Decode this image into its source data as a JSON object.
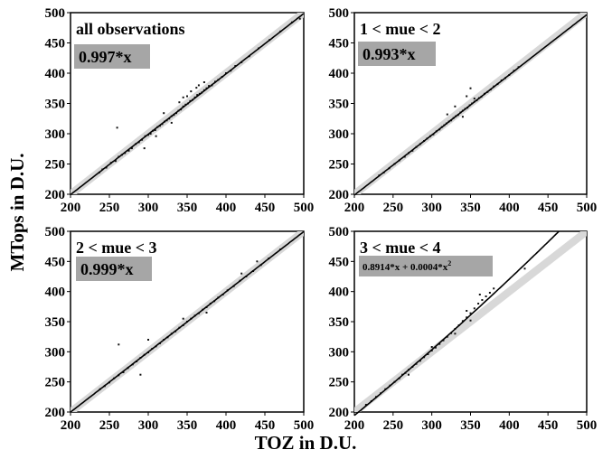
{
  "figure": {
    "xlabel": "TOZ in D.U.",
    "ylabel": "MTops in D.U."
  },
  "chart_data": [
    {
      "type": "scatter",
      "title": "all observations",
      "fit_label": "0.997*x",
      "fit": {
        "linear": 0.997,
        "quadratic": 0
      },
      "xlim": [
        200,
        500
      ],
      "ylim": [
        200,
        500
      ],
      "xticks": [
        200,
        250,
        300,
        350,
        400,
        450,
        500
      ],
      "yticks": [
        200,
        250,
        300,
        350,
        400,
        450,
        500
      ],
      "points": [
        [
          237,
          236
        ],
        [
          241,
          241
        ],
        [
          246,
          244
        ],
        [
          252,
          252
        ],
        [
          258,
          255
        ],
        [
          262,
          262
        ],
        [
          266,
          265
        ],
        [
          270,
          268
        ],
        [
          275,
          272
        ],
        [
          279,
          276
        ],
        [
          284,
          283
        ],
        [
          288,
          286
        ],
        [
          292,
          290
        ],
        [
          296,
          296
        ],
        [
          300,
          298
        ],
        [
          303,
          300
        ],
        [
          306,
          305
        ],
        [
          309,
          306
        ],
        [
          312,
          311
        ],
        [
          315,
          313
        ],
        [
          318,
          316
        ],
        [
          321,
          320
        ],
        [
          324,
          322
        ],
        [
          327,
          325
        ],
        [
          330,
          329
        ],
        [
          333,
          331
        ],
        [
          336,
          334
        ],
        [
          339,
          338
        ],
        [
          342,
          340
        ],
        [
          345,
          345
        ],
        [
          348,
          348
        ],
        [
          351,
          350
        ],
        [
          354,
          354
        ],
        [
          357,
          356
        ],
        [
          360,
          360
        ],
        [
          363,
          364
        ],
        [
          366,
          366
        ],
        [
          369,
          368
        ],
        [
          372,
          372
        ],
        [
          375,
          375
        ],
        [
          378,
          379
        ],
        [
          382,
          380
        ],
        [
          386,
          386
        ],
        [
          390,
          389
        ],
        [
          395,
          394
        ],
        [
          400,
          400
        ],
        [
          406,
          404
        ],
        [
          412,
          412
        ],
        [
          420,
          418
        ],
        [
          430,
          428
        ],
        [
          442,
          441
        ],
        [
          456,
          455
        ],
        [
          470,
          469
        ],
        [
          485,
          484
        ],
        [
          495,
          490
        ],
        [
          260,
          310
        ],
        [
          355,
          370
        ],
        [
          362,
          376
        ],
        [
          350,
          362
        ],
        [
          340,
          352
        ],
        [
          320,
          334
        ],
        [
          310,
          296
        ],
        [
          295,
          276
        ],
        [
          330,
          318
        ],
        [
          345,
          360
        ],
        [
          365,
          380
        ],
        [
          372,
          385
        ]
      ]
    },
    {
      "type": "scatter",
      "title": "1 < mue < 2",
      "fit_label": "0.993*x",
      "fit": {
        "linear": 0.993,
        "quadratic": 0
      },
      "xlim": [
        200,
        500
      ],
      "ylim": [
        200,
        500
      ],
      "xticks": [
        200,
        250,
        300,
        350,
        400,
        450,
        500
      ],
      "yticks": [
        200,
        250,
        300,
        350,
        400,
        450,
        500
      ],
      "points": [
        [
          232,
          231
        ],
        [
          238,
          236
        ],
        [
          245,
          243
        ],
        [
          252,
          250
        ],
        [
          258,
          256
        ],
        [
          265,
          262
        ],
        [
          270,
          268
        ],
        [
          275,
          272
        ],
        [
          280,
          278
        ],
        [
          285,
          283
        ],
        [
          290,
          288
        ],
        [
          294,
          292
        ],
        [
          298,
          296
        ],
        [
          302,
          299
        ],
        [
          306,
          304
        ],
        [
          310,
          307
        ],
        [
          313,
          311
        ],
        [
          316,
          314
        ],
        [
          319,
          317
        ],
        [
          322,
          320
        ],
        [
          325,
          322
        ],
        [
          328,
          326
        ],
        [
          331,
          329
        ],
        [
          334,
          331
        ],
        [
          337,
          335
        ],
        [
          340,
          338
        ],
        [
          343,
          341
        ],
        [
          346,
          343
        ],
        [
          349,
          347
        ],
        [
          352,
          350
        ],
        [
          355,
          353
        ],
        [
          358,
          355
        ],
        [
          361,
          359
        ],
        [
          364,
          361
        ],
        [
          368,
          366
        ],
        [
          372,
          369
        ],
        [
          376,
          373
        ],
        [
          380,
          378
        ],
        [
          385,
          382
        ],
        [
          390,
          388
        ],
        [
          395,
          392
        ],
        [
          400,
          397
        ],
        [
          406,
          404
        ],
        [
          412,
          410
        ],
        [
          330,
          345
        ],
        [
          345,
          362
        ],
        [
          350,
          375
        ],
        [
          355,
          358
        ],
        [
          320,
          332
        ],
        [
          340,
          328
        ]
      ]
    },
    {
      "type": "scatter",
      "title": "2 < mue < 3",
      "fit_label": "0.999*x",
      "fit": {
        "linear": 0.999,
        "quadratic": 0
      },
      "xlim": [
        200,
        500
      ],
      "ylim": [
        200,
        500
      ],
      "xticks": [
        200,
        250,
        300,
        350,
        400,
        450,
        500
      ],
      "yticks": [
        200,
        250,
        300,
        350,
        400,
        450,
        500
      ],
      "points": [
        [
          238,
          238
        ],
        [
          244,
          243
        ],
        [
          250,
          249
        ],
        [
          256,
          256
        ],
        [
          262,
          261
        ],
        [
          268,
          266
        ],
        [
          274,
          273
        ],
        [
          280,
          279
        ],
        [
          285,
          284
        ],
        [
          290,
          290
        ],
        [
          295,
          295
        ],
        [
          300,
          299
        ],
        [
          305,
          305
        ],
        [
          310,
          309
        ],
        [
          315,
          314
        ],
        [
          320,
          320
        ],
        [
          325,
          324
        ],
        [
          330,
          330
        ],
        [
          335,
          334
        ],
        [
          340,
          340
        ],
        [
          345,
          344
        ],
        [
          350,
          350
        ],
        [
          355,
          355
        ],
        [
          360,
          360
        ],
        [
          365,
          364
        ],
        [
          370,
          370
        ],
        [
          375,
          374
        ],
        [
          380,
          380
        ],
        [
          385,
          384
        ],
        [
          390,
          390
        ],
        [
          396,
          395
        ],
        [
          402,
          402
        ],
        [
          410,
          409
        ],
        [
          418,
          418
        ],
        [
          426,
          425
        ],
        [
          435,
          434
        ],
        [
          445,
          444
        ],
        [
          455,
          455
        ],
        [
          262,
          312
        ],
        [
          290,
          262
        ],
        [
          300,
          320
        ],
        [
          345,
          355
        ],
        [
          375,
          365
        ],
        [
          420,
          430
        ],
        [
          440,
          450
        ],
        [
          470,
          470
        ]
      ]
    },
    {
      "type": "scatter",
      "title": "3 < mue < 4",
      "fit_label": "0.8914*x + 0.0004*x",
      "fit_label_sup": "2",
      "fit": {
        "linear": 0.8914,
        "quadratic": 0.0004
      },
      "xlim": [
        200,
        500
      ],
      "ylim": [
        200,
        500
      ],
      "xticks": [
        200,
        250,
        300,
        350,
        400,
        450,
        500
      ],
      "yticks": [
        200,
        250,
        300,
        350,
        400,
        450,
        500
      ],
      "points": [
        [
          215,
          212
        ],
        [
          222,
          218
        ],
        [
          228,
          225
        ],
        [
          234,
          231
        ],
        [
          240,
          238
        ],
        [
          246,
          244
        ],
        [
          252,
          250
        ],
        [
          258,
          256
        ],
        [
          262,
          262
        ],
        [
          266,
          265
        ],
        [
          270,
          270
        ],
        [
          275,
          275
        ],
        [
          280,
          280
        ],
        [
          285,
          285
        ],
        [
          290,
          291
        ],
        [
          295,
          296
        ],
        [
          300,
          302
        ],
        [
          305,
          307
        ],
        [
          310,
          313
        ],
        [
          315,
          319
        ],
        [
          320,
          325
        ],
        [
          325,
          331
        ],
        [
          330,
          338
        ],
        [
          335,
          344
        ],
        [
          340,
          351
        ],
        [
          345,
          357
        ],
        [
          350,
          364
        ],
        [
          355,
          372
        ],
        [
          360,
          380
        ],
        [
          365,
          386
        ],
        [
          370,
          392
        ],
        [
          375,
          398
        ],
        [
          380,
          405
        ],
        [
          420,
          438
        ],
        [
          300,
          308
        ],
        [
          330,
          330
        ],
        [
          345,
          368
        ],
        [
          362,
          395
        ],
        [
          350,
          352
        ],
        [
          270,
          262
        ]
      ]
    }
  ]
}
